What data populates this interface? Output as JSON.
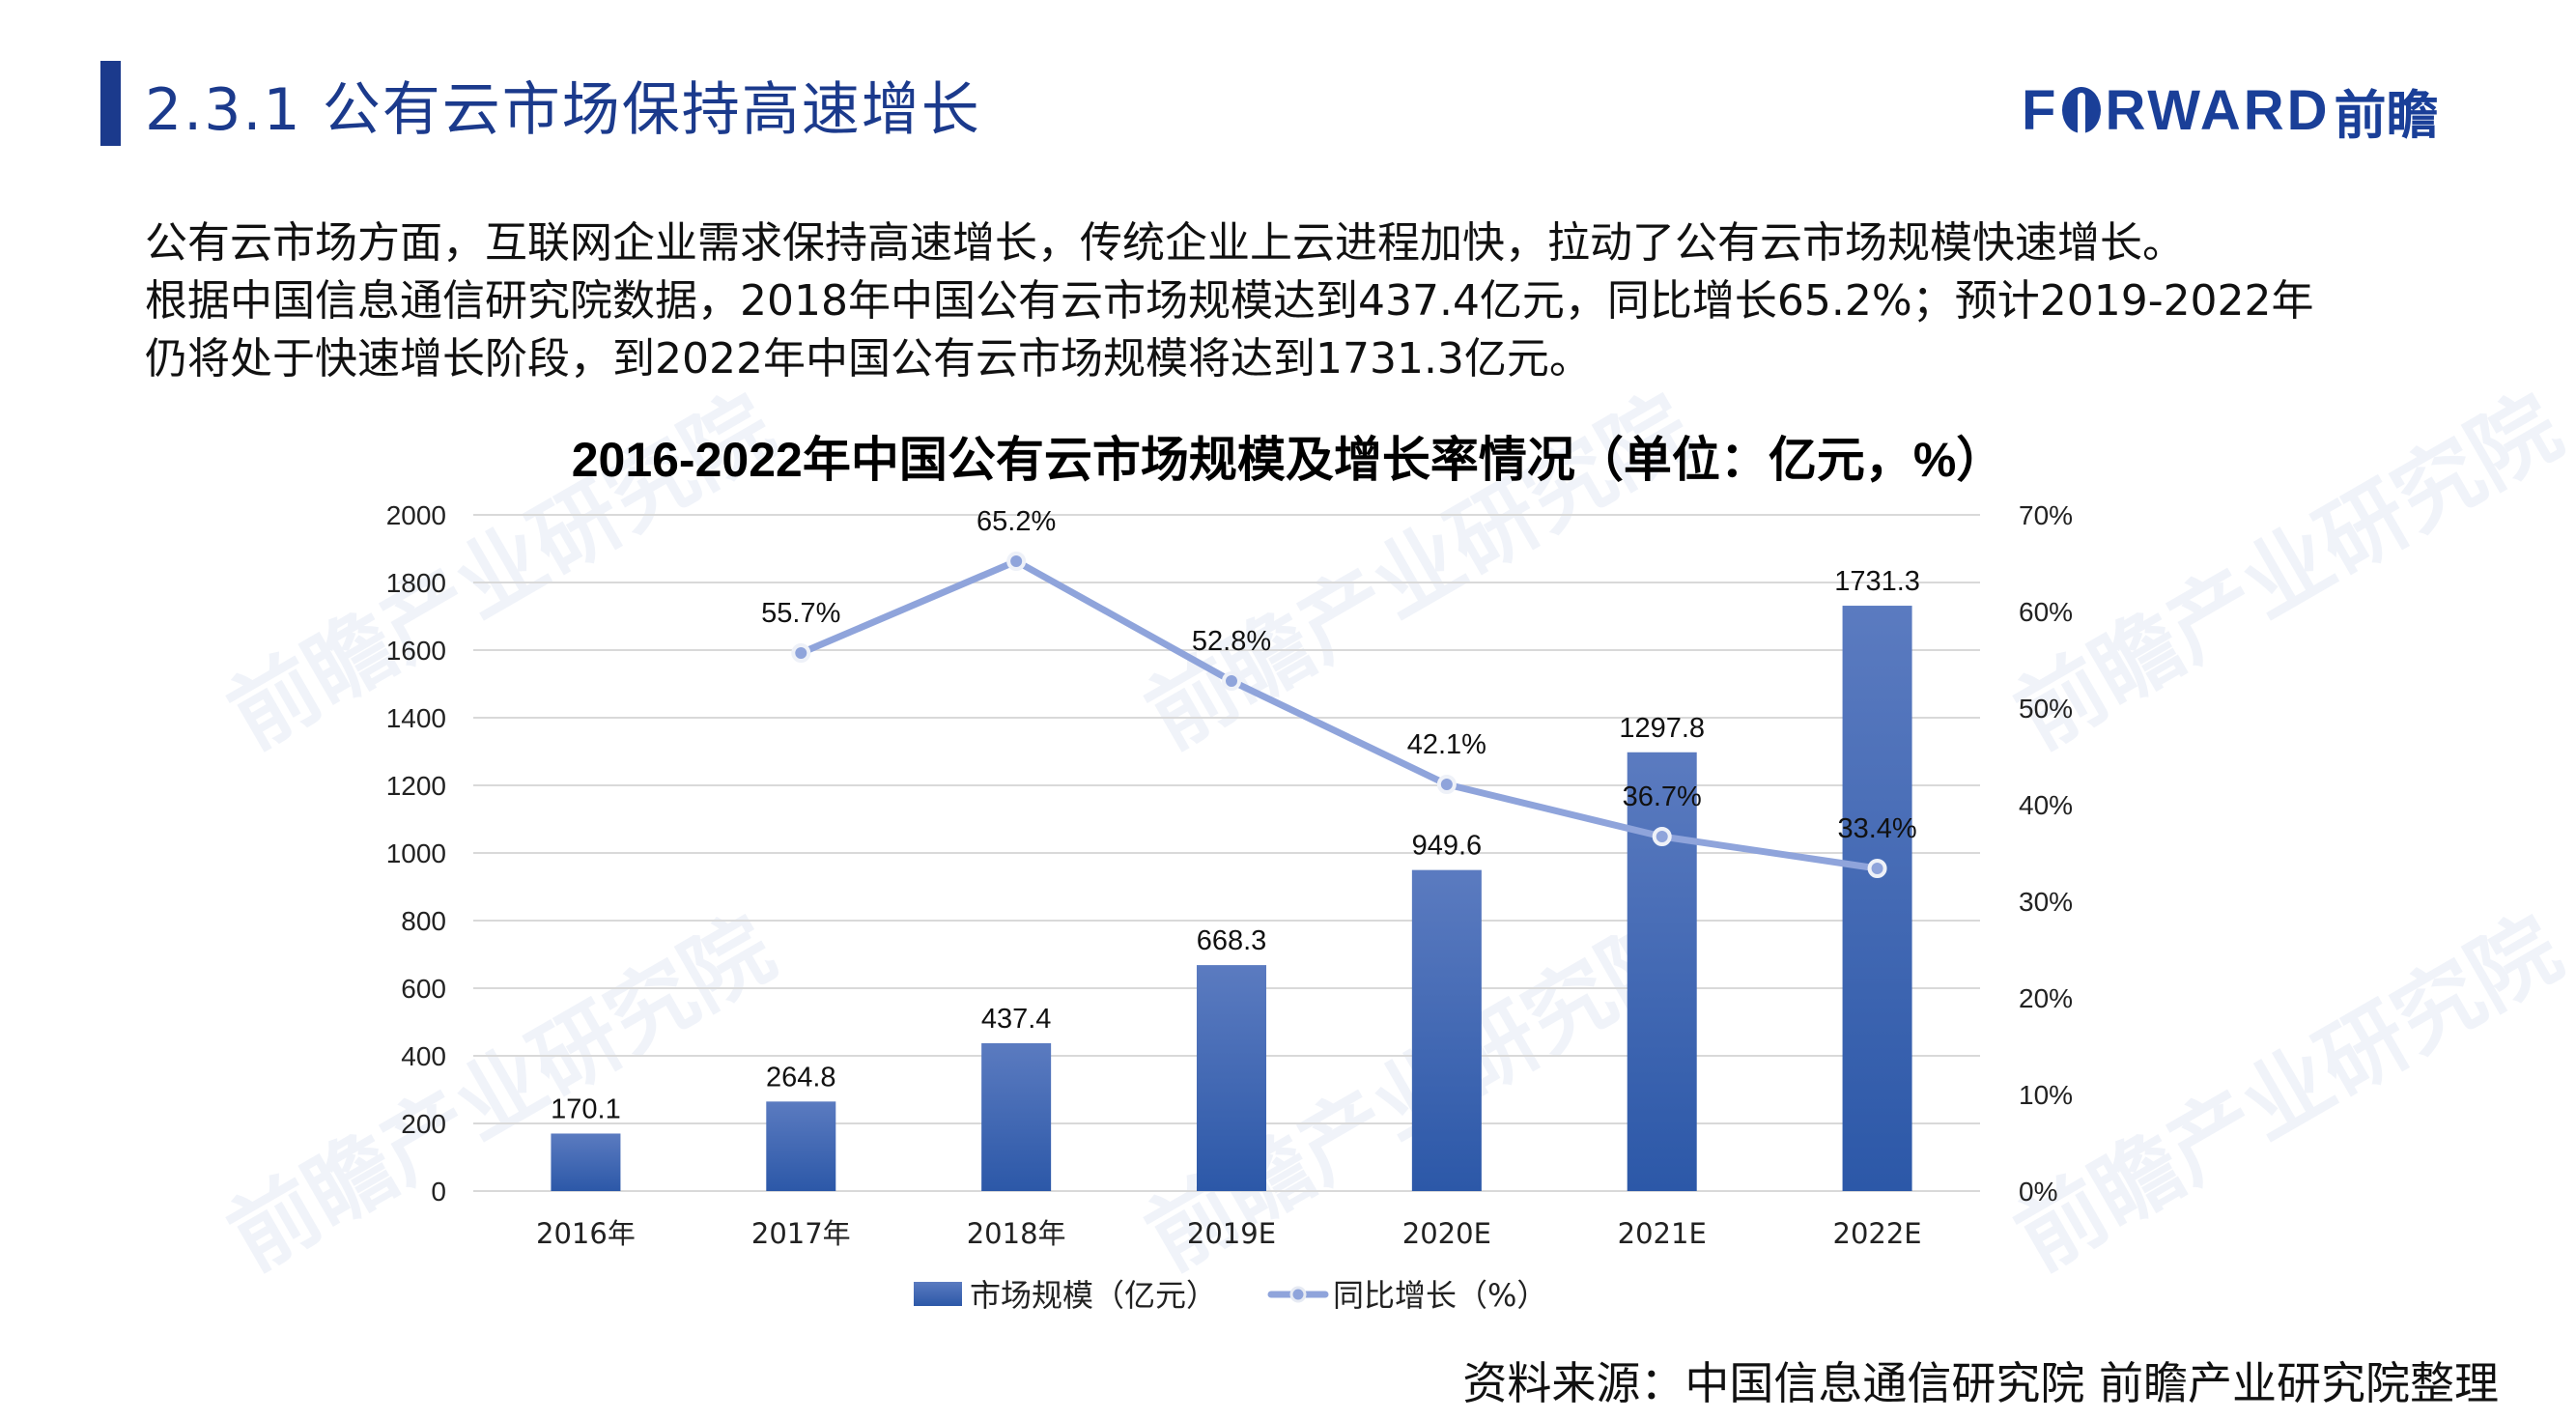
{
  "header": {
    "section_title": "2.3.1 公有云市场保持高速增长",
    "logo_latin": "F",
    "logo_latin_rest": "RWARD",
    "logo_cn": "前瞻"
  },
  "paragraph": {
    "lines": [
      "公有云市场方面，互联网企业需求保持高速增长，传统企业上云进程加快，拉动了公有云市场规模快速增长。",
      "根据中国信息通信研究院数据，2018年中国公有云市场规模达到437.4亿元，同比增长65.2%；预计2019-2022年",
      "仍将处于快速增长阶段，到2022年中国公有云市场规模将达到1731.3亿元。"
    ]
  },
  "watermark": "前瞻产业研究院",
  "source": "资料来源：中国信息通信研究院  前瞻产业研究院整理",
  "colors": {
    "heading": "#1b3a8c",
    "bar_top": "#5b7bc0",
    "bar_bottom": "#2c58a8",
    "line": "#8fa4db",
    "grid": "#d9d9d9"
  },
  "chart_data": {
    "type": "bar",
    "title": "2016-2022年中国公有云市场规模及增长率情况（单位：亿元，%）",
    "categories": [
      "2016年",
      "2017年",
      "2018年",
      "2019E",
      "2020E",
      "2021E",
      "2022E"
    ],
    "series": [
      {
        "name": "市场规模（亿元）",
        "type": "bar",
        "axis": "left",
        "values": [
          170.1,
          264.8,
          437.4,
          668.3,
          949.6,
          1297.8,
          1731.3
        ],
        "labels": [
          "170.1",
          "264.8",
          "437.4",
          "668.3",
          "949.6",
          "1297.8",
          "1731.3"
        ]
      },
      {
        "name": "同比增长（%）",
        "type": "line",
        "axis": "right",
        "values": [
          null,
          55.7,
          65.2,
          52.8,
          42.1,
          36.7,
          33.4
        ],
        "labels": [
          "",
          "55.7%",
          "65.2%",
          "52.8%",
          "42.1%",
          "36.7%",
          "33.4%"
        ]
      }
    ],
    "left_axis": {
      "ylim": [
        0,
        2000
      ],
      "ticks": [
        "2000",
        "1800",
        "1600",
        "1400",
        "1200",
        "1000",
        "800",
        "600",
        "400",
        "200",
        "0"
      ]
    },
    "right_axis": {
      "ylim": [
        0,
        70
      ],
      "ticks": [
        "70%",
        "60%",
        "50%",
        "40%",
        "30%",
        "20%",
        "10%",
        "0%"
      ]
    },
    "xlabel": "",
    "ylabel": "",
    "grid": true,
    "legend_position": "bottom",
    "legend": [
      "市场规模（亿元）",
      "同比增长（%）"
    ]
  }
}
